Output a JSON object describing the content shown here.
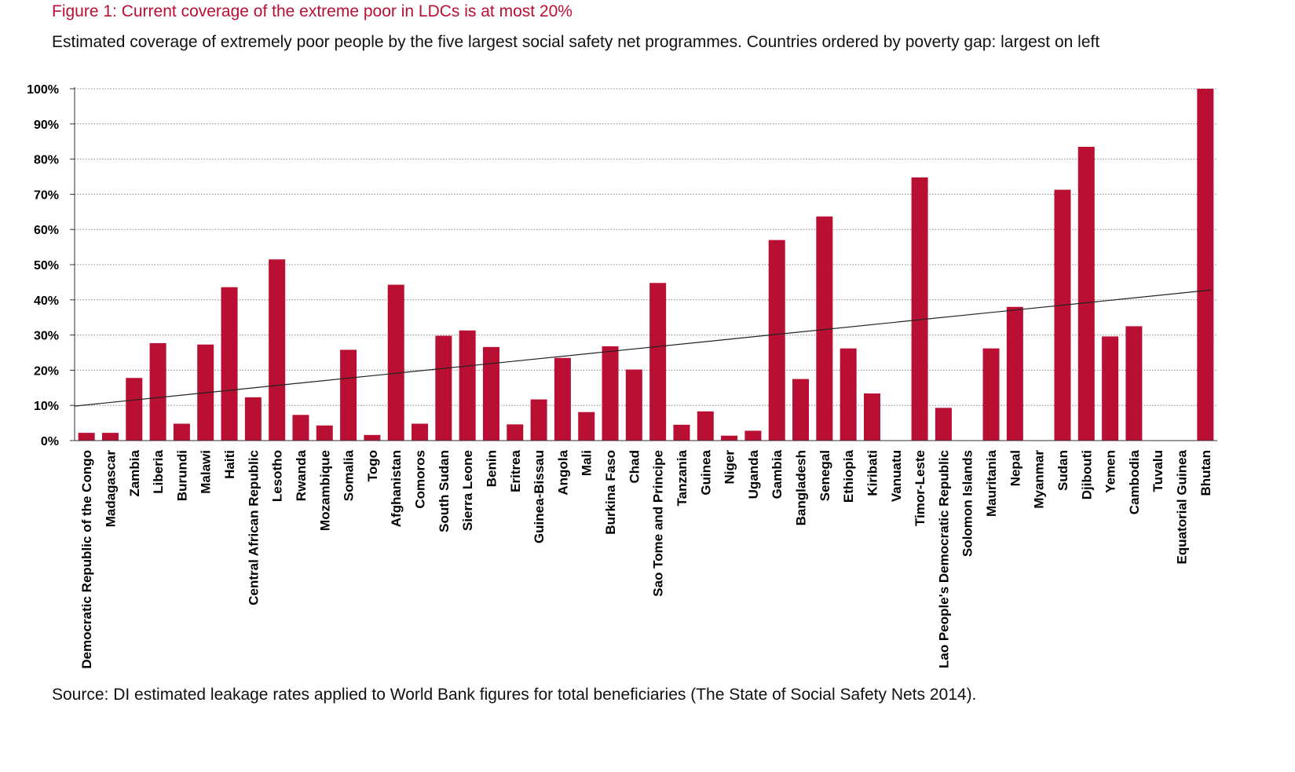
{
  "figure": {
    "title": "Figure 1: Current coverage of the extreme poor in LDCs is at most 20%",
    "subtitle": "Estimated coverage of extremely poor people by the five largest social safety net programmes. Countries ordered by poverty gap: largest on left",
    "source": "Source: DI estimated leakage rates applied to World Bank figures for total beneficiaries (The State of Social Safety Nets 2014)."
  },
  "colors": {
    "bar": "#b80f33",
    "trend": "#222222",
    "grid": "#888888",
    "axis": "#333333"
  },
  "chart_data": {
    "type": "bar",
    "title": "Figure 1: Current coverage of the extreme poor in LDCs is at most 20%",
    "xlabel": "",
    "ylabel": "",
    "ylim": [
      0,
      100
    ],
    "yticks": [
      "0%",
      "10%",
      "20%",
      "30%",
      "40%",
      "50%",
      "60%",
      "70%",
      "80%",
      "90%",
      "100%"
    ],
    "grid": "horizontal dotted",
    "legend": "none",
    "categories": [
      "Democratic Republic of the Congo",
      "Madagascar",
      "Zambia",
      "Liberia",
      "Burundi",
      "Malawi",
      "Haiti",
      "Central African Republic",
      "Lesotho",
      "Rwanda",
      "Mozambique",
      "Somalia",
      "Togo",
      "Afghanistan",
      "Comoros",
      "South Sudan",
      "Sierra Leone",
      "Benin",
      "Eritrea",
      "Guinea-Bissau",
      "Angola",
      "Mali",
      "Burkina Faso",
      "Chad",
      "Sao Tome and Principe",
      "Tanzania",
      "Guinea",
      "Niger",
      "Uganda",
      "Gambia",
      "Bangladesh",
      "Senegal",
      "Ethiopia",
      "Kiribati",
      "Vanuatu",
      "Timor-Leste",
      "Lao People's Democratic Republic",
      "Solomon Islands",
      "Mauritania",
      "Nepal",
      "Myanmar",
      "Sudan",
      "Djibouti",
      "Yemen",
      "Cambodia",
      "Tuvalu",
      "Equatorial Guinea",
      "Bhutan"
    ],
    "values": [
      2.2,
      2.2,
      17.8,
      27.7,
      4.8,
      27.3,
      43.6,
      12.3,
      51.5,
      7.3,
      4.3,
      25.8,
      1.6,
      44.3,
      4.8,
      29.8,
      31.3,
      26.6,
      4.6,
      11.7,
      23.5,
      8.1,
      26.8,
      20.2,
      44.8,
      4.5,
      8.3,
      1.4,
      2.8,
      57.0,
      17.5,
      63.7,
      26.2,
      13.4,
      0,
      74.8,
      9.3,
      0,
      26.2,
      38.0,
      0,
      71.3,
      83.5,
      29.6,
      32.5,
      0,
      0,
      100
    ],
    "trendline": {
      "type": "linear",
      "start": 9.8,
      "end": 42.8
    }
  }
}
